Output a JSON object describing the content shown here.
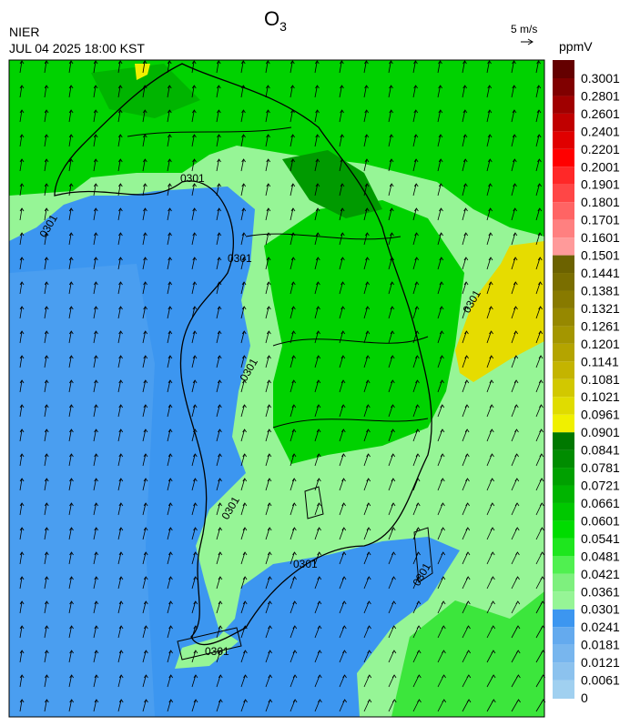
{
  "header": {
    "org": "NIER",
    "datetime": "JUL 04 2025 18:00 KST",
    "title": {
      "main": "O",
      "sub": "3"
    },
    "wind_scale": "5 m/s"
  },
  "map": {
    "contour_labels": [
      "0301",
      "0301",
      "0301",
      "0301",
      "0301",
      "0301",
      "0301",
      "0301",
      "0301"
    ]
  },
  "colorbar": {
    "unit": "ppmV",
    "ticks": [
      0,
      0.0061,
      0.0121,
      0.0181,
      0.0241,
      0.0301,
      0.0361,
      0.0421,
      0.0481,
      0.0541,
      0.0601,
      0.0661,
      0.0721,
      0.0781,
      0.0841,
      0.0901,
      0.0961,
      0.1021,
      0.1081,
      0.1141,
      0.1201,
      0.1261,
      0.1321,
      0.1381,
      0.1441,
      0.1501,
      0.1601,
      0.1701,
      0.1801,
      0.1901,
      0.2001,
      0.2201,
      0.2401,
      0.2601,
      0.2801,
      0.3001
    ],
    "colors": [
      "#a0d0f0",
      "#8cc2ee",
      "#78b6ee",
      "#64aaee",
      "#3c96f0",
      "#96f596",
      "#7ef07e",
      "#50f050",
      "#1ee61e",
      "#00dc00",
      "#00c800",
      "#00b400",
      "#00a000",
      "#008c00",
      "#007800",
      "#f0f000",
      "#e0dc00",
      "#d2c800",
      "#c4b400",
      "#b4a400",
      "#a49600",
      "#968800",
      "#887a00",
      "#7a6e00",
      "#6c6200",
      "#ff9a9a",
      "#ff8080",
      "#ff6464",
      "#ff4646",
      "#ff2828",
      "#ff0000",
      "#e00000",
      "#c00000",
      "#a00000",
      "#800000",
      "#640000"
    ]
  }
}
